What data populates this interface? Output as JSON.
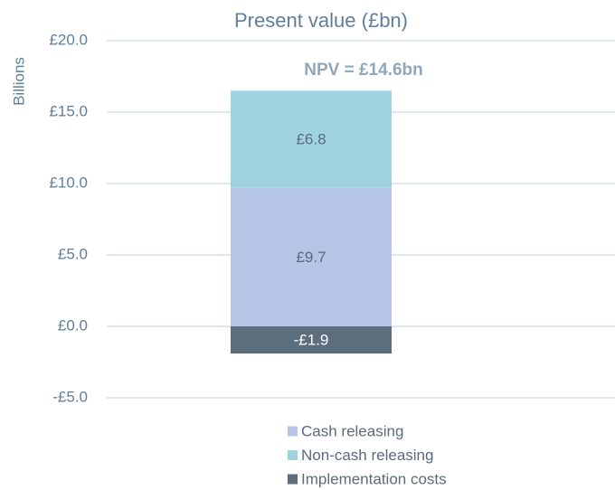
{
  "chart_data": {
    "type": "stacked_bar",
    "title": "Present value (£bn)",
    "y_label": "Billions",
    "annotation": "NPV = £14.6bn",
    "categories": [
      null
    ],
    "series": [
      {
        "name": "Cash releasing",
        "color": "#b4c5e6",
        "values": [
          9.7
        ],
        "value_labels": [
          "£9.7"
        ]
      },
      {
        "name": "Non-cash releasing",
        "color": "#9fd3e0",
        "values": [
          6.8
        ],
        "value_labels": [
          "£6.8"
        ]
      },
      {
        "name": "Implementation costs",
        "color": "#5a6e7e",
        "values": [
          -1.9
        ],
        "value_labels": [
          "-£1.9"
        ]
      }
    ],
    "ylim": [
      -5,
      20
    ],
    "yticks": [
      {
        "value": -5,
        "label": "-£5.0"
      },
      {
        "value": 0,
        "label": "£0.0"
      },
      {
        "value": 5,
        "label": "£5.0"
      },
      {
        "value": 10,
        "label": "£10.0"
      },
      {
        "value": 15,
        "label": "£15.0"
      },
      {
        "value": 20,
        "label": "£20.0"
      }
    ],
    "grid": true
  }
}
